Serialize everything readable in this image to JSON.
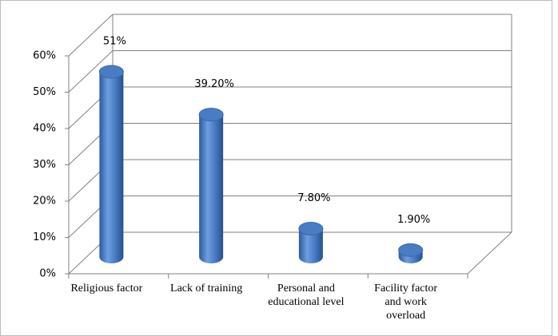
{
  "chart_data": {
    "type": "bar3d",
    "categories": [
      "Religious factor",
      "Lack of training",
      "Personal and educational level",
      "Facility factor and work overload"
    ],
    "values": [
      51,
      39.2,
      7.8,
      1.9
    ],
    "value_labels": [
      "51%",
      "39.20%",
      "7.80%",
      "1.90%"
    ],
    "color": "#4a7cc4",
    "ylim": [
      0,
      60
    ],
    "yticks": [
      {
        "value": 0,
        "label": "0%"
      },
      {
        "value": 10,
        "label": "10%"
      },
      {
        "value": 20,
        "label": "20%"
      },
      {
        "value": 30,
        "label": "30%"
      },
      {
        "value": 40,
        "label": "40%"
      },
      {
        "value": 50,
        "label": "50%"
      },
      {
        "value": 60,
        "label": "60%"
      }
    ],
    "grid": true
  }
}
